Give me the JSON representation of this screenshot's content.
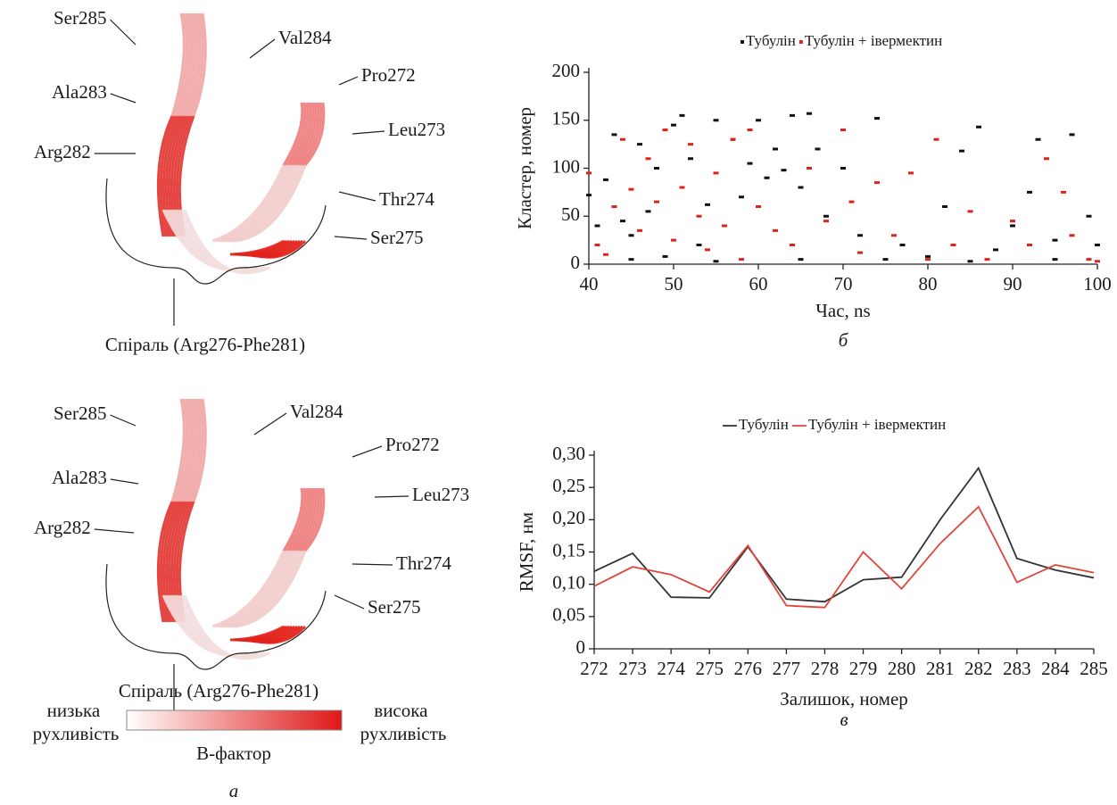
{
  "structures": [
    {
      "labels": [
        "Ser285",
        "Val284",
        "Pro272",
        "Ala283",
        "Leu273",
        "Arg282",
        "Thr274",
        "Ser275"
      ],
      "helix": "Спіраль (Arg276-Phe281)"
    },
    {
      "labels": [
        "Ser285",
        "Val284",
        "Pro272",
        "Ala283",
        "Leu273",
        "Arg282",
        "Thr274",
        "Ser275"
      ],
      "helix": "Спіраль (Arg276-Phe281)"
    }
  ],
  "colorbar": {
    "low_label": [
      "низька",
      "рухливість"
    ],
    "high_label": [
      "висока",
      "рухливість"
    ],
    "title": "B-фактор"
  },
  "panel_label": "а",
  "chart_data": [
    {
      "type": "scatter",
      "xlabel": "Час, ns",
      "ylabel": "Кластер, номер",
      "panel_label": "б",
      "xlim": [
        40,
        100
      ],
      "xticks": [
        40,
        50,
        60,
        70,
        80,
        90,
        100
      ],
      "ylim": [
        0,
        200
      ],
      "yticks": [
        0,
        50,
        100,
        150,
        200
      ],
      "series": [
        {
          "name": "Тубулін",
          "color": "#111111",
          "x": [
            40,
            41,
            42,
            43,
            44,
            45,
            46,
            47,
            48,
            49,
            50,
            51,
            52,
            53,
            54,
            55,
            57,
            58,
            59,
            60,
            61,
            62,
            63,
            64,
            65,
            66,
            67,
            68,
            70,
            72,
            74,
            75,
            77,
            80,
            82,
            84,
            86,
            88,
            90,
            92,
            93,
            95,
            97,
            99,
            100,
            45,
            55,
            65,
            85,
            95
          ],
          "values": [
            72,
            40,
            88,
            135,
            45,
            30,
            125,
            55,
            100,
            8,
            145,
            155,
            110,
            20,
            62,
            150,
            130,
            70,
            105,
            150,
            90,
            120,
            98,
            155,
            80,
            157,
            120,
            50,
            100,
            30,
            152,
            5,
            20,
            8,
            60,
            118,
            143,
            15,
            40,
            75,
            130,
            25,
            135,
            50,
            20,
            5,
            3,
            5,
            3,
            5
          ]
        },
        {
          "name": "Тубулін + івермектин",
          "color": "#e0221c",
          "x": [
            40,
            41,
            42,
            43,
            44,
            45,
            46,
            47,
            48,
            49,
            50,
            51,
            52,
            53,
            54,
            55,
            56,
            57,
            58,
            59,
            60,
            62,
            64,
            66,
            68,
            70,
            71,
            72,
            74,
            76,
            78,
            80,
            81,
            83,
            85,
            87,
            90,
            92,
            94,
            96,
            97,
            99,
            100
          ],
          "values": [
            95,
            20,
            10,
            60,
            130,
            78,
            35,
            110,
            65,
            140,
            25,
            80,
            125,
            50,
            15,
            95,
            40,
            130,
            5,
            140,
            60,
            35,
            20,
            100,
            45,
            140,
            65,
            12,
            85,
            30,
            95,
            5,
            130,
            20,
            55,
            5,
            45,
            20,
            110,
            75,
            30,
            5,
            3
          ]
        }
      ]
    },
    {
      "type": "line",
      "xlabel": "Залишок, номер",
      "ylabel": "RMSF, нм",
      "panel_label": "в",
      "x": [
        272,
        273,
        274,
        275,
        276,
        277,
        278,
        279,
        280,
        281,
        282,
        283,
        284,
        285
      ],
      "xlim": [
        272,
        285
      ],
      "xticks": [
        272,
        273,
        274,
        275,
        276,
        277,
        278,
        279,
        280,
        281,
        282,
        283,
        284,
        285
      ],
      "ylim": [
        0,
        0.3
      ],
      "yticks": [
        0,
        {
          "value": 0.05,
          "label": "0,05"
        },
        {
          "value": 0.1,
          "label": "0,10"
        },
        {
          "value": 0.15,
          "label": "0,15"
        },
        {
          "value": 0.2,
          "label": "0,20"
        },
        {
          "value": 0.25,
          "label": "0,25"
        },
        {
          "value": 0.3,
          "label": "0,30"
        }
      ],
      "series": [
        {
          "name": "Тубулін",
          "color": "#333333",
          "values": [
            0.12,
            0.148,
            0.08,
            0.079,
            0.158,
            0.077,
            0.073,
            0.107,
            0.111,
            0.2,
            0.28,
            0.14,
            0.122,
            0.11
          ]
        },
        {
          "name": "Тубулін + івермектин",
          "color": "#e0443c",
          "values": [
            0.097,
            0.127,
            0.115,
            0.088,
            0.16,
            0.067,
            0.064,
            0.15,
            0.093,
            0.163,
            0.22,
            0.103,
            0.13,
            0.118
          ]
        }
      ]
    }
  ]
}
